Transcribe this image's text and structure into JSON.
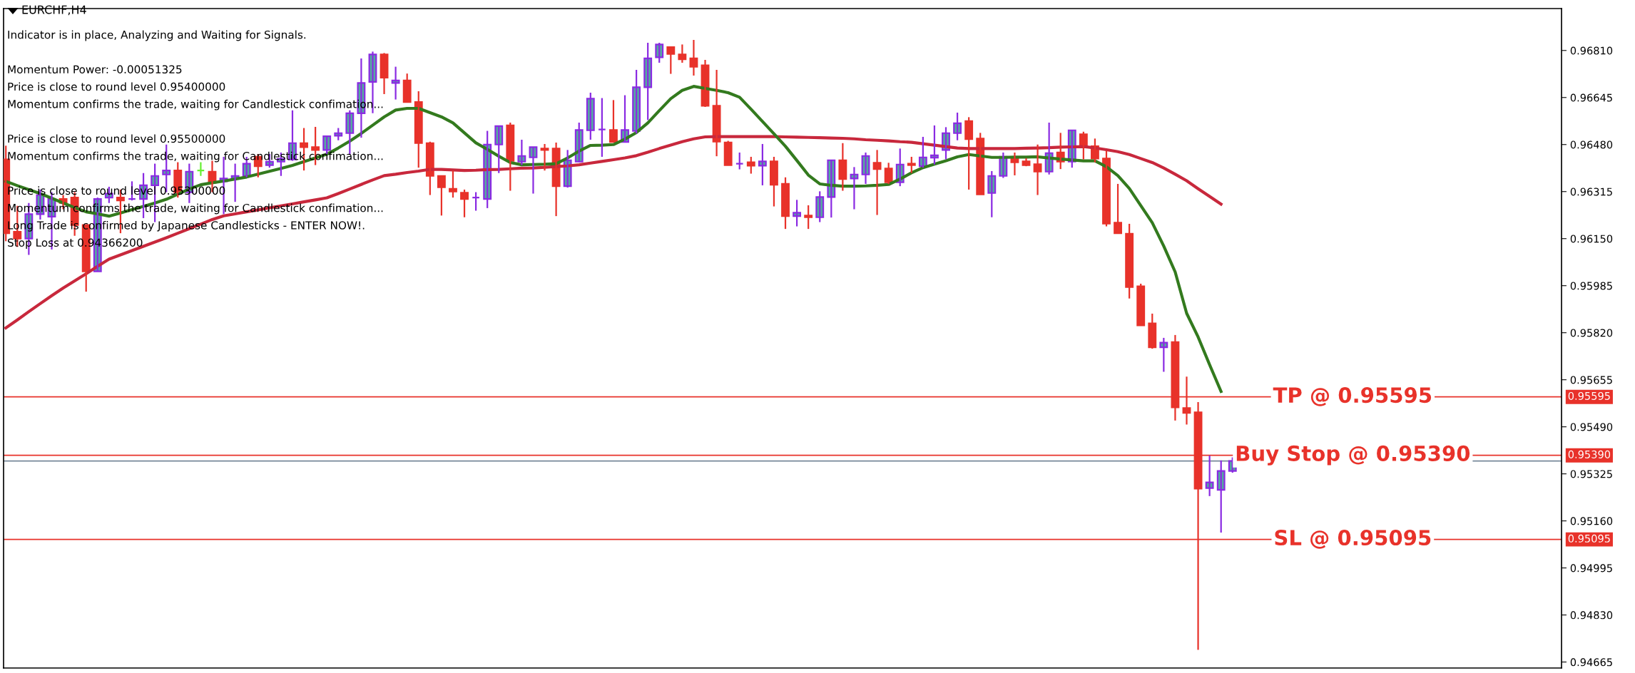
{
  "chart_data": {
    "type": "candlestick",
    "title": "EURCHF,H4",
    "annotations": [
      "Indicator is in place, Analyzing and Waiting for Signals.",
      "Momentum Power: -0.00051325",
      "Price is close to round level 0.95400000",
      "Momentum confirms the trade, waiting for Candlestick confimation...",
      "Price is close to round level 0.95500000",
      "Momentum confirms the trade, waiting for Candlestick confimation...",
      "Price is close to round level 0.95300000",
      "Momentum confirms the trade, waiting for Candlestick confimation...",
      "Long Trade is confirmed by Japanese Candlesticks - ENTER NOW!.",
      "Stop Loss at 0.94366200",
      {
        "text": "TP @ 0.95595",
        "y": 0.95595
      },
      {
        "text": "Buy Stop @ 0.95390",
        "y": 0.9539
      },
      {
        "text": "SL @ 0.95095",
        "y": 0.95095
      }
    ],
    "categories": [
      null,
      null,
      null,
      null,
      null,
      null,
      null,
      null,
      null,
      null,
      null,
      null,
      null,
      null,
      null,
      null,
      null,
      null,
      null,
      null,
      null,
      null,
      null,
      null,
      null,
      null,
      null,
      null,
      null,
      null,
      null,
      null,
      null,
      null,
      null,
      null,
      null,
      null,
      null,
      null,
      null,
      null,
      null,
      null,
      null,
      null,
      null,
      null,
      null,
      null,
      null,
      null,
      null,
      null,
      null,
      null,
      null,
      null,
      null,
      null,
      null,
      null,
      null,
      null,
      null,
      null,
      null,
      null,
      null,
      null,
      null,
      null,
      null,
      null,
      null,
      null,
      null,
      null,
      null,
      null,
      null,
      null,
      null,
      null,
      null,
      null,
      null,
      null,
      null,
      null,
      null,
      null,
      null,
      null,
      null,
      null,
      null,
      null,
      null,
      null,
      null,
      null,
      null,
      null,
      null,
      null,
      null,
      null
    ],
    "ohlc": [
      [
        0.96428,
        0.96476,
        0.96141,
        0.96169
      ],
      [
        0.96174,
        0.96265,
        0.96121,
        0.9615
      ],
      [
        0.9615,
        0.96275,
        0.96093,
        0.96236
      ],
      [
        0.96236,
        0.96322,
        0.96217,
        0.96303
      ],
      [
        0.96227,
        0.96313,
        0.96112,
        0.96289
      ],
      [
        0.96289,
        0.96303,
        0.96253,
        0.96275
      ],
      [
        0.96294,
        0.96313,
        0.9616,
        0.96198
      ],
      [
        0.96198,
        0.96198,
        0.95964,
        0.96035
      ],
      [
        0.96035,
        0.96294,
        0.96035,
        0.96289
      ],
      [
        0.96294,
        0.96332,
        0.96275,
        0.96308
      ],
      [
        0.96294,
        0.96322,
        0.96169,
        0.96284
      ],
      [
        0.96289,
        0.96351,
        0.96284,
        0.96289
      ],
      [
        0.96289,
        0.9638,
        0.96222,
        0.96337
      ],
      [
        0.96337,
        0.96413,
        0.96208,
        0.9637
      ],
      [
        0.96375,
        0.9648,
        0.96313,
        0.96389
      ],
      [
        0.96389,
        0.96418,
        0.96294,
        0.96313
      ],
      [
        0.96313,
        0.96413,
        0.96275,
        0.96385
      ],
      [
        0.96389,
        0.96418,
        0.9637,
        0.96389
      ],
      [
        0.96385,
        0.96423,
        0.96313,
        0.96346
      ],
      [
        0.96351,
        0.96437,
        0.96236,
        0.96361
      ],
      [
        0.96361,
        0.96413,
        0.96279,
        0.9637
      ],
      [
        0.9637,
        0.96437,
        0.96365,
        0.96413
      ],
      [
        0.96437,
        0.96447,
        0.96365,
        0.96404
      ],
      [
        0.96408,
        0.96447,
        0.96399,
        0.9642
      ],
      [
        0.9642,
        0.96452,
        0.9637,
        0.9643
      ],
      [
        0.96428,
        0.966,
        0.96423,
        0.96485
      ],
      [
        0.96485,
        0.96538,
        0.96389,
        0.96471
      ],
      [
        0.96471,
        0.96542,
        0.96408,
        0.96461
      ],
      [
        0.96461,
        0.96509,
        0.96447,
        0.96509
      ],
      [
        0.96511,
        0.96538,
        0.96495,
        0.9652
      ],
      [
        0.9652,
        0.966,
        0.96447,
        0.9659
      ],
      [
        0.9659,
        0.96782,
        0.96504,
        0.96696
      ],
      [
        0.967,
        0.96806,
        0.9659,
        0.96796
      ],
      [
        0.96796,
        0.96801,
        0.96657,
        0.96715
      ],
      [
        0.96696,
        0.96753,
        0.96638,
        0.96705
      ],
      [
        0.96705,
        0.96729,
        0.96629,
        0.96629
      ],
      [
        0.96629,
        0.96667,
        0.96399,
        0.96485
      ],
      [
        0.96485,
        0.9649,
        0.96303,
        0.9637
      ],
      [
        0.9637,
        0.9637,
        0.96231,
        0.9633
      ],
      [
        0.96325,
        0.96389,
        0.96294,
        0.96315
      ],
      [
        0.96311,
        0.96322,
        0.96225,
        0.96289
      ],
      [
        0.96294,
        0.96313,
        0.96248,
        0.96294
      ],
      [
        0.96289,
        0.96528,
        0.96257,
        0.9648
      ],
      [
        0.9648,
        0.96545,
        0.9638,
        0.96545
      ],
      [
        0.96547,
        0.96557,
        0.96318,
        0.96423
      ],
      [
        0.9642,
        0.96497,
        0.96408,
        0.9644
      ],
      [
        0.96435,
        0.96471,
        0.96308,
        0.96471
      ],
      [
        0.96466,
        0.96482,
        0.96389,
        0.96461
      ],
      [
        0.96466,
        0.96487,
        0.96229,
        0.96334
      ],
      [
        0.96334,
        0.96461,
        0.96329,
        0.96425
      ],
      [
        0.9642,
        0.96557,
        0.96418,
        0.96531
      ],
      [
        0.9653,
        0.96662,
        0.96497,
        0.96641
      ],
      [
        0.96533,
        0.96643,
        0.96437,
        0.96533
      ],
      [
        0.96531,
        0.96636,
        0.96489,
        0.96489
      ],
      [
        0.96489,
        0.96653,
        0.96489,
        0.96531
      ],
      [
        0.96528,
        0.96742,
        0.96519,
        0.96681
      ],
      [
        0.96681,
        0.96837,
        0.96566,
        0.96782
      ],
      [
        0.96786,
        0.96837,
        0.96767,
        0.96831
      ],
      [
        0.96822,
        0.96822,
        0.96728,
        0.96798
      ],
      [
        0.96796,
        0.96831,
        0.96767,
        0.96779
      ],
      [
        0.96782,
        0.96847,
        0.96722,
        0.96753
      ],
      [
        0.96758,
        0.96777,
        0.96612,
        0.96616
      ],
      [
        0.96616,
        0.96742,
        0.96439,
        0.9649
      ],
      [
        0.96487,
        0.96493,
        0.96408,
        0.96408
      ],
      [
        0.96413,
        0.96452,
        0.96393,
        0.96413
      ],
      [
        0.96418,
        0.96437,
        0.96378,
        0.96406
      ],
      [
        0.96406,
        0.96482,
        0.96337,
        0.96421
      ],
      [
        0.96421,
        0.96437,
        0.96263,
        0.96339
      ],
      [
        0.96342,
        0.96365,
        0.96184,
        0.96229
      ],
      [
        0.96229,
        0.96286,
        0.96193,
        0.96241
      ],
      [
        0.96231,
        0.96267,
        0.96184,
        0.96225
      ],
      [
        0.96225,
        0.96316,
        0.96208,
        0.96296
      ],
      [
        0.96296,
        0.96425,
        0.96224,
        0.96425
      ],
      [
        0.96425,
        0.96485,
        0.96318,
        0.96359
      ],
      [
        0.96361,
        0.96401,
        0.96253,
        0.96375
      ],
      [
        0.96375,
        0.96452,
        0.96342,
        0.9644
      ],
      [
        0.96416,
        0.96461,
        0.96233,
        0.96394
      ],
      [
        0.96396,
        0.96416,
        0.96342,
        0.96348
      ],
      [
        0.96348,
        0.96466,
        0.96334,
        0.9641
      ],
      [
        0.96413,
        0.96437,
        0.9638,
        0.96408
      ],
      [
        0.96404,
        0.96507,
        0.96399,
        0.96435
      ],
      [
        0.96434,
        0.96547,
        0.9641,
        0.96442
      ],
      [
        0.96461,
        0.96541,
        0.96428,
        0.9652
      ],
      [
        0.9652,
        0.96592,
        0.96495,
        0.96555
      ],
      [
        0.96562,
        0.96576,
        0.96322,
        0.96499
      ],
      [
        0.96501,
        0.96521,
        0.96305,
        0.96305
      ],
      [
        0.9631,
        0.96387,
        0.96225,
        0.9637
      ],
      [
        0.9637,
        0.96452,
        0.96363,
        0.96437
      ],
      [
        0.96432,
        0.96452,
        0.96372,
        0.96418
      ],
      [
        0.96421,
        0.96432,
        0.96404,
        0.96408
      ],
      [
        0.96411,
        0.9648,
        0.96303,
        0.96385
      ],
      [
        0.96385,
        0.96557,
        0.96375,
        0.9645
      ],
      [
        0.96452,
        0.96521,
        0.96394,
        0.9642
      ],
      [
        0.9642,
        0.9653,
        0.96399,
        0.9653
      ],
      [
        0.96516,
        0.96525,
        0.96428,
        0.96476
      ],
      [
        0.96474,
        0.96501,
        0.96418,
        0.96431
      ],
      [
        0.96431,
        0.96458,
        0.96193,
        0.96203
      ],
      [
        0.96206,
        0.96342,
        0.96169,
        0.96169
      ],
      [
        0.96167,
        0.96202,
        0.9594,
        0.9598
      ],
      [
        0.95983,
        0.95992,
        0.95846,
        0.95846
      ],
      [
        0.95853,
        0.95887,
        0.95764,
        0.95769
      ],
      [
        0.95769,
        0.95802,
        0.95683,
        0.95785
      ],
      [
        0.95787,
        0.95812,
        0.95512,
        0.95558
      ],
      [
        0.95556,
        0.95666,
        0.95498,
        0.95539
      ],
      [
        0.95541,
        0.95577,
        0.94708,
        0.95273
      ],
      [
        0.95275,
        0.95389,
        0.95247,
        0.95295
      ],
      [
        0.95269,
        0.95372,
        0.95119,
        0.95335
      ],
      [
        0.95335,
        0.95383,
        0.95329,
        0.9537
      ]
    ],
    "colors": [
      "#e8322a",
      "#e8322a",
      "#55aaa0",
      "#55aaa0",
      "#55aaa0",
      "#e8322a",
      "#e8322a",
      "#e8322a",
      "#55aaa0",
      "#55aaa0",
      "#e8322a",
      "#8a2be2",
      "#55aaa0",
      "#55aaa0",
      "#55aaa0",
      "#e8322a",
      "#55aaa0",
      "#66ee33",
      "#e8322a",
      "#55aaa0",
      "#55aaa0",
      "#55aaa0",
      "#e8322a",
      "#55aaa0",
      "#55aaa0",
      "#55aaa0",
      "#e8322a",
      "#e8322a",
      "#55aaa0",
      "#55aaa0",
      "#55aaa0",
      "#55aaa0",
      "#55aaa0",
      "#e8322a",
      "#55aaa0",
      "#e8322a",
      "#e8322a",
      "#e8322a",
      "#e8322a",
      "#e8322a",
      "#e8322a",
      "#8a2be2",
      "#55aaa0",
      "#55aaa0",
      "#e8322a",
      "#55aaa0",
      "#55aaa0",
      "#e8322a",
      "#e8322a",
      "#55aaa0",
      "#55aaa0",
      "#55aaa0",
      "#8a2be2",
      "#e8322a",
      "#55aaa0",
      "#55aaa0",
      "#55aaa0",
      "#55aaa0",
      "#e8322a",
      "#e8322a",
      "#e8322a",
      "#e8322a",
      "#e8322a",
      "#e8322a",
      "#8a2be2",
      "#e8322a",
      "#55aaa0",
      "#e8322a",
      "#e8322a",
      "#55aaa0",
      "#e8322a",
      "#55aaa0",
      "#55aaa0",
      "#e8322a",
      "#55aaa0",
      "#55aaa0",
      "#e8322a",
      "#e8322a",
      "#55aaa0",
      "#e8322a",
      "#55aaa0",
      "#55aaa0",
      "#55aaa0",
      "#55aaa0",
      "#e8322a",
      "#e8322a",
      "#55aaa0",
      "#55aaa0",
      "#e8322a",
      "#e8322a",
      "#e8322a",
      "#55aaa0",
      "#e8322a",
      "#55aaa0",
      "#e8322a",
      "#e8322a",
      "#e8322a",
      "#e8322a",
      "#e8322a",
      "#e8322a",
      "#e8322a",
      "#55aaa0",
      "#e8322a",
      "#e8322a",
      "#e8322a",
      "#55aaa0",
      "#55aaa0",
      "#55aaa0"
    ],
    "series": [
      {
        "type": "line",
        "color": "#c8283c",
        "values": [
          0.95837,
          0.95865,
          0.95894,
          0.95922,
          0.9595,
          0.95977,
          0.96002,
          0.96027,
          0.96053,
          0.96078,
          0.96093,
          0.96108,
          0.96123,
          0.96138,
          0.96153,
          0.96169,
          0.96185,
          0.96201,
          0.96217,
          0.9623,
          0.96237,
          0.96244,
          0.96251,
          0.96258,
          0.96265,
          0.96272,
          0.96279,
          0.96286,
          0.96293,
          0.96308,
          0.96324,
          0.9634,
          0.96356,
          0.96371,
          0.96376,
          0.96382,
          0.96387,
          0.96393,
          0.96393,
          0.96391,
          0.96389,
          0.9639,
          0.96392,
          0.96393,
          0.96395,
          0.96397,
          0.96398,
          0.964,
          0.96403,
          0.96405,
          0.96409,
          0.96415,
          0.96421,
          0.96427,
          0.96433,
          0.96441,
          0.96453,
          0.96466,
          0.96478,
          0.9649,
          0.965,
          0.96507,
          0.96508,
          0.96508,
          0.96508,
          0.96508,
          0.96508,
          0.96508,
          0.96507,
          0.96506,
          0.96505,
          0.96504,
          0.96503,
          0.96502,
          0.965,
          0.96497,
          0.96495,
          0.96493,
          0.9649,
          0.96488,
          0.96483,
          0.96478,
          0.96473,
          0.96468,
          0.96466,
          0.96466,
          0.96466,
          0.96466,
          0.96466,
          0.96467,
          0.96468,
          0.96469,
          0.96471,
          0.96472,
          0.96473,
          0.96468,
          0.96462,
          0.96455,
          0.96445,
          0.96431,
          0.96417,
          0.96398,
          0.96376,
          0.96353,
          0.96325,
          0.96298,
          0.96271,
          null
        ]
      },
      {
        "type": "line",
        "color": "#337a1e",
        "values": [
          0.96351,
          0.96336,
          0.96322,
          0.96308,
          0.96292,
          0.96275,
          0.96259,
          0.96244,
          0.96237,
          0.96229,
          0.9624,
          0.96252,
          0.96263,
          0.96275,
          0.96288,
          0.96306,
          0.96324,
          0.96339,
          0.96346,
          0.96352,
          0.96359,
          0.96366,
          0.96376,
          0.96386,
          0.96396,
          0.96407,
          0.9642,
          0.96433,
          0.96446,
          0.96468,
          0.96492,
          0.96519,
          0.96548,
          0.96577,
          0.96601,
          0.96607,
          0.96607,
          0.96592,
          0.96577,
          0.96556,
          0.96521,
          0.96486,
          0.96463,
          0.96439,
          0.96417,
          0.96409,
          0.9641,
          0.96411,
          0.96413,
          0.96433,
          0.96457,
          0.96477,
          0.96478,
          0.9648,
          0.96499,
          0.96522,
          0.96556,
          0.96599,
          0.96641,
          0.9667,
          0.96684,
          0.96677,
          0.9667,
          0.96662,
          0.96646,
          0.96604,
          0.96561,
          0.96518,
          0.96474,
          0.96424,
          0.96373,
          0.96342,
          0.96337,
          0.96334,
          0.96334,
          0.96335,
          0.96337,
          0.9634,
          0.96359,
          0.96381,
          0.96399,
          0.96411,
          0.96423,
          0.96437,
          0.96445,
          0.9644,
          0.96435,
          0.96435,
          0.96436,
          0.96436,
          0.96437,
          0.96433,
          0.96429,
          0.96426,
          0.96423,
          0.96423,
          0.96402,
          0.96371,
          0.96326,
          0.96266,
          0.96206,
          0.96124,
          0.96033,
          0.95888,
          0.95805,
          0.95708,
          0.95614,
          null
        ]
      }
    ],
    "ref_lines": [
      {
        "axis": "y",
        "value": 0.95595,
        "label": "0.95595",
        "color": "#e8322a"
      },
      {
        "axis": "y",
        "value": 0.9539,
        "label": "0.95390",
        "color": "#e8322a"
      },
      {
        "axis": "y",
        "value": 0.9537,
        "color": "#778899"
      },
      {
        "axis": "y",
        "value": 0.95095,
        "label": "0.95095",
        "color": "#e8322a"
      }
    ],
    "ylim": [
      0.94644,
      0.96957
    ],
    "yticks": [
      {
        "value": 0.9681,
        "label": "0.96810"
      },
      {
        "value": 0.96645,
        "label": "0.96645"
      },
      {
        "value": 0.9648,
        "label": "0.96480"
      },
      {
        "value": 0.96315,
        "label": "0.96315"
      },
      {
        "value": 0.9615,
        "label": "0.96150"
      },
      {
        "value": 0.95985,
        "label": "0.95985"
      },
      {
        "value": 0.9582,
        "label": "0.95820"
      },
      {
        "value": 0.95655,
        "label": "0.95655"
      },
      {
        "value": 0.9549,
        "label": "0.95490"
      },
      {
        "value": 0.95325,
        "label": "0.95325"
      },
      {
        "value": 0.9516,
        "label": "0.95160"
      },
      {
        "value": 0.94995,
        "label": "0.94995"
      },
      {
        "value": 0.9483,
        "label": "0.94830"
      },
      {
        "value": 0.94665,
        "label": "0.94665"
      }
    ],
    "tick_labels": "y",
    "grid": false,
    "legend": false
  }
}
